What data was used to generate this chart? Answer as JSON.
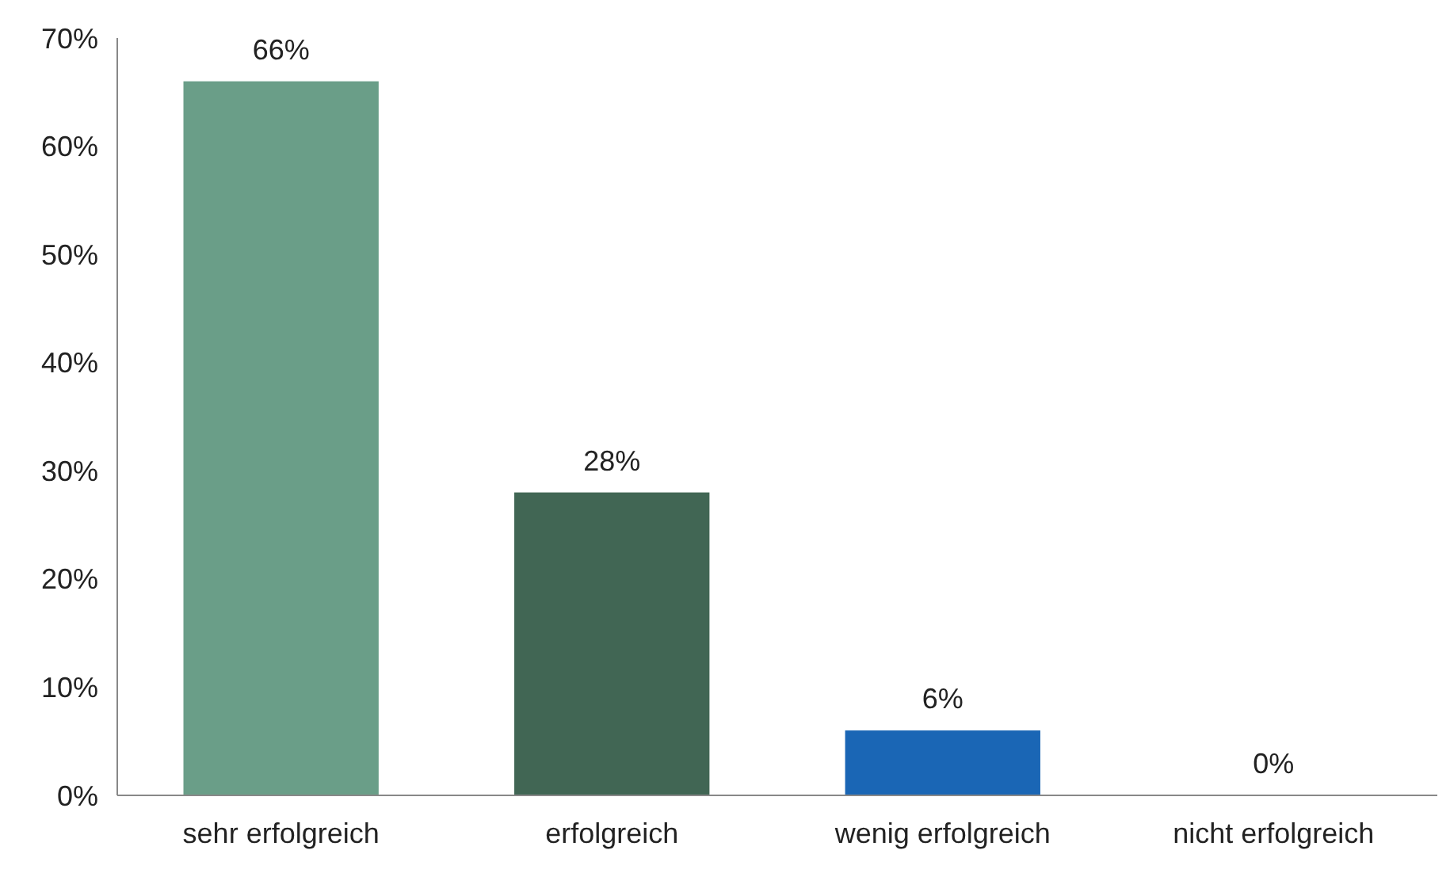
{
  "chart_data": {
    "type": "bar",
    "categories": [
      "sehr erfolgreich",
      "erfolgreich",
      "wenig erfolgreich",
      "nicht erfolgreich"
    ],
    "values": [
      66,
      28,
      6,
      0
    ],
    "colors": [
      "#6a9e88",
      "#416654",
      "#1a66b5",
      "#1a66b5"
    ],
    "value_labels": [
      "66%",
      "28%",
      "6%",
      "0%"
    ],
    "ylim": [
      0,
      70
    ],
    "yticks": [
      {
        "value": 0,
        "label": "0%"
      },
      {
        "value": 10,
        "label": "10%"
      },
      {
        "value": 20,
        "label": "20%"
      },
      {
        "value": 30,
        "label": "30%"
      },
      {
        "value": 40,
        "label": "40%"
      },
      {
        "value": 50,
        "label": "50%"
      },
      {
        "value": 60,
        "label": "60%"
      },
      {
        "value": 70,
        "label": "70%"
      }
    ],
    "ylabel": null
  }
}
